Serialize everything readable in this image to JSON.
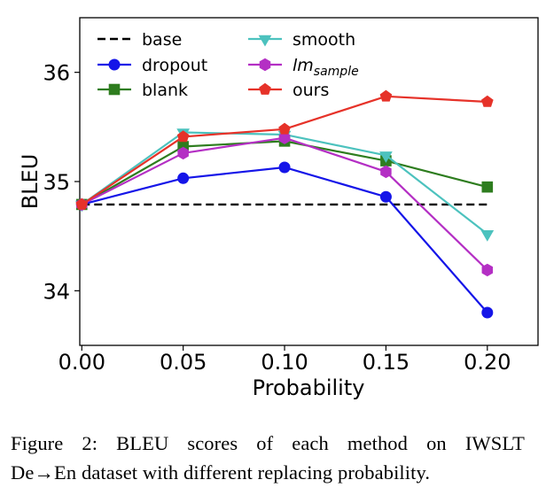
{
  "chart_data": {
    "type": "line",
    "title": "",
    "xlabel": "Probability",
    "ylabel": "BLEU",
    "x": [
      0.0,
      0.05,
      0.1,
      0.15,
      0.2
    ],
    "x_tick_labels": [
      "0.00",
      "0.05",
      "0.10",
      "0.15",
      "0.20"
    ],
    "y_ticks": [
      34,
      35,
      36
    ],
    "y_tick_labels": [
      "34",
      "35",
      "36"
    ],
    "xlim": [
      -0.001,
      0.225
    ],
    "ylim": [
      33.5,
      36.5
    ],
    "grid": false,
    "legend_position": "top-left",
    "series": [
      {
        "name": "base",
        "legend_label": "base",
        "color": "#000000",
        "style": "dashed",
        "marker": "none",
        "x": [
          0.0,
          0.2
        ],
        "values": [
          34.79,
          34.79
        ]
      },
      {
        "name": "dropout",
        "legend_label": "dropout",
        "color": "#1515e8",
        "style": "solid",
        "marker": "circle",
        "values": [
          34.79,
          35.03,
          35.13,
          34.86,
          33.8
        ]
      },
      {
        "name": "blank",
        "legend_label": "blank",
        "color": "#2e7d1f",
        "style": "solid",
        "marker": "square",
        "values": [
          34.79,
          35.32,
          35.37,
          35.19,
          34.95
        ]
      },
      {
        "name": "smooth",
        "legend_label": "smooth",
        "color": "#4cc2be",
        "style": "solid",
        "marker": "triangle-down",
        "values": [
          34.79,
          35.45,
          35.43,
          35.24,
          34.52
        ]
      },
      {
        "name": "lm_sample",
        "legend_label": "lm",
        "legend_subscript": "sample",
        "color": "#b42fc4",
        "style": "solid",
        "marker": "hexagon",
        "values": [
          34.79,
          35.26,
          35.4,
          35.09,
          34.19
        ]
      },
      {
        "name": "ours",
        "legend_label": "ours",
        "color": "#e63229",
        "style": "solid",
        "marker": "pentagon",
        "values": [
          34.79,
          35.41,
          35.48,
          35.78,
          35.73
        ]
      }
    ]
  },
  "caption": {
    "line1": "Figure 2:  BLEU scores of each method on IWSLT",
    "line2_prefix": "De",
    "line2_arrow": "→",
    "line2_rest": "En dataset with different replacing probability."
  }
}
